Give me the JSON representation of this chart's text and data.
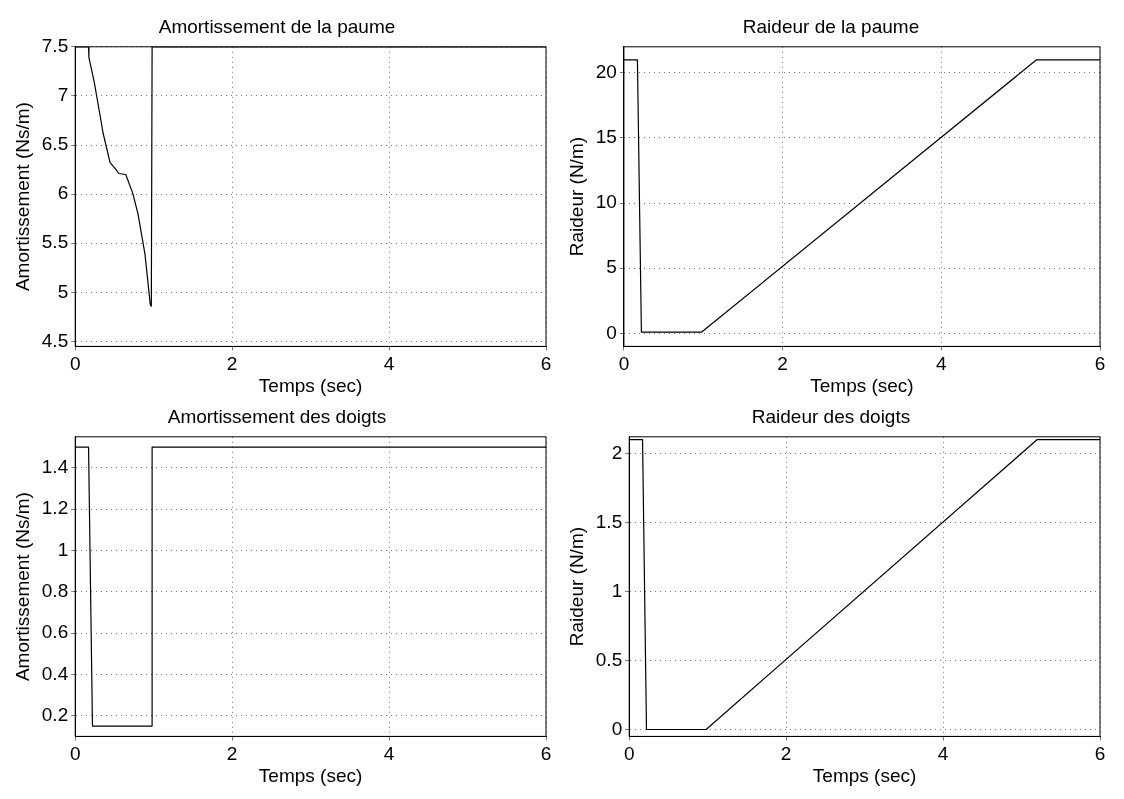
{
  "chart_data": [
    {
      "type": "line",
      "title": "Amortissement de la paume",
      "xlabel": "Temps (sec)",
      "ylabel": "Amortissement (Ns/m)",
      "xlim": [
        0,
        6
      ],
      "xticks": [
        0,
        2,
        4,
        6
      ],
      "ylim": [
        4.45,
        7.5
      ],
      "yticks": [
        4.5,
        5,
        5.5,
        6,
        6.5,
        7,
        7.5
      ],
      "grid": true,
      "marker": "none",
      "line_style": "solid",
      "series": [
        {
          "color": "#000000",
          "x": [
            0,
            0.17,
            0.175,
            0.245,
            0.356,
            0.444,
            0.511,
            0.556,
            0.644,
            0.733,
            0.8,
            0.889,
            0.956,
            0.97,
            0.98,
            6
          ],
          "values": [
            7.5,
            7.5,
            7.39,
            7.13,
            6.62,
            6.32,
            6.26,
            6.21,
            6.2,
            6.01,
            5.8,
            5.39,
            4.88,
            4.86,
            7.5,
            7.5
          ]
        }
      ]
    },
    {
      "type": "line",
      "title": "Raideur de la paume",
      "xlabel": "Temps (sec)",
      "ylabel": "Raideur (N/m)",
      "xlim": [
        0,
        6
      ],
      "xticks": [
        0,
        2,
        4,
        6
      ],
      "ylim": [
        -1,
        22
      ],
      "yticks": [
        0,
        5,
        10,
        15,
        20
      ],
      "grid": true,
      "marker": "none",
      "line_style": "solid",
      "series": [
        {
          "color": "#000000",
          "x": [
            0,
            0.17,
            0.22,
            0.98,
            5.2,
            6
          ],
          "values": [
            21,
            21,
            0.1,
            0.1,
            21,
            21
          ]
        }
      ]
    },
    {
      "type": "line",
      "title": "Amortissement des doigts",
      "xlabel": "Temps (sec)",
      "ylabel": "Amortissement (Ns/m)",
      "xlim": [
        0,
        6
      ],
      "xticks": [
        0,
        2,
        4,
        6
      ],
      "ylim": [
        0.1,
        1.55
      ],
      "yticks": [
        0.2,
        0.4,
        0.6,
        0.8,
        1,
        1.2,
        1.4
      ],
      "grid": true,
      "marker": "none",
      "line_style": "solid",
      "series": [
        {
          "color": "#000000",
          "x": [
            0,
            0.17,
            0.22,
            0.98,
            0.98,
            6
          ],
          "values": [
            1.5,
            1.5,
            0.15,
            0.15,
            1.5,
            1.5
          ]
        }
      ]
    },
    {
      "type": "line",
      "title": "Raideur des doigts",
      "xlabel": "Temps (sec)",
      "ylabel": "Raideur (N/m)",
      "xlim": [
        0,
        6
      ],
      "xticks": [
        0,
        2,
        4,
        6
      ],
      "ylim": [
        -0.05,
        2.12
      ],
      "yticks": [
        0,
        0.5,
        1,
        1.5,
        2
      ],
      "grid": true,
      "marker": "none",
      "line_style": "solid",
      "series": [
        {
          "color": "#000000",
          "x": [
            0,
            0.17,
            0.22,
            0.98,
            5.2,
            6
          ],
          "values": [
            2.1,
            2.1,
            0,
            0,
            2.1,
            2.1
          ]
        }
      ]
    }
  ]
}
